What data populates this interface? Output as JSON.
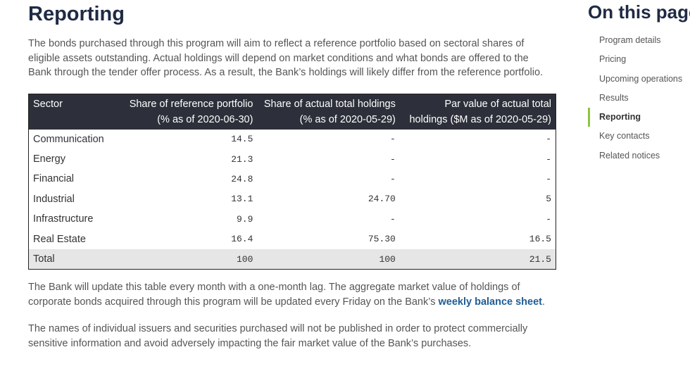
{
  "header": {
    "title": "Reporting"
  },
  "intro": "The bonds purchased through this program will aim to reflect a reference portfolio based on sectoral shares of eligible assets outstanding. Actual holdings will depend on market conditions and what bonds are offered to the Bank through the tender offer process. As a result, the Bank’s holdings will likely differ from the reference portfolio.",
  "table": {
    "columns": [
      "Sector",
      "Share of reference portfolio (% as of 2020-06-30)",
      "Share of actual total holdings (% as of 2020-05-29)",
      "Par value of actual total holdings ($M as of 2020-05-29)"
    ],
    "rows": [
      [
        "Communication",
        "14.5",
        "-",
        "-"
      ],
      [
        "Energy",
        "21.3",
        "-",
        "-"
      ],
      [
        "Financial",
        "24.8",
        "-",
        "-"
      ],
      [
        "Industrial",
        "13.1",
        "24.70",
        "5"
      ],
      [
        "Infrastructure",
        "9.9",
        "-",
        "-"
      ],
      [
        "Real Estate",
        "16.4",
        "75.30",
        "16.5"
      ],
      [
        "Total",
        "100",
        "100",
        "21.5"
      ]
    ]
  },
  "update_note": {
    "text": "The Bank will update this table every month with a one-month lag. The aggregate market value of holdings of corporate bonds acquired through this program will be updated every Friday on the Bank’s ",
    "link": "weekly balance sheet",
    "end": "."
  },
  "disclosure": "The names of individual issuers and securities purchased will not be published in order to protect commercially sensitive information and avoid adversely impacting the fair market value of the Bank’s purchases.",
  "sidebar": {
    "title": "On this page",
    "links": [
      "Program details",
      "Pricing",
      "Upcoming operations",
      "Results",
      "Reporting",
      "Key contacts",
      "Related notices"
    ],
    "active": 4
  }
}
